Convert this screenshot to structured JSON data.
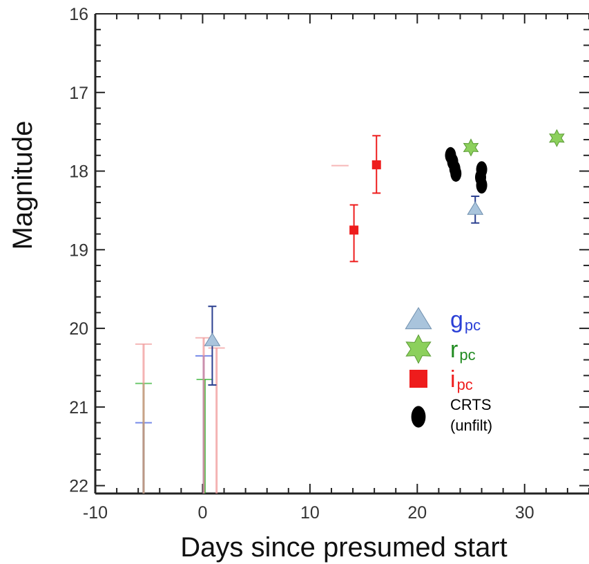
{
  "chart_data": {
    "type": "scatter",
    "xlabel": "Days since presumed start",
    "ylabel": "Magnitude",
    "xlim": [
      -10,
      36
    ],
    "ylim": [
      22.1,
      16
    ],
    "y_inverted": true,
    "x_ticks": [
      -10,
      0,
      10,
      20,
      30
    ],
    "y_ticks": [
      16,
      17,
      18,
      19,
      20,
      21,
      22
    ],
    "grid": false,
    "legend_position": "right",
    "series": [
      {
        "key": "g",
        "legend_main": "g",
        "legend_sub": "pc",
        "marker": "triangle",
        "color": "#a9c4dc",
        "label_color": "#2a3fd6",
        "points": [
          {
            "x": 0.9,
            "y": 20.15
          },
          {
            "x": 25.4,
            "y": 18.48
          }
        ],
        "errorbars": [
          {
            "x": 0.9,
            "y_low": 19.72,
            "y_high": 20.72
          },
          {
            "x": 25.4,
            "y_low": 18.32,
            "y_high": 18.66
          }
        ],
        "upper_limits": [
          {
            "x": -5.5,
            "y": 21.2
          },
          {
            "x": 0.1,
            "y": 20.35
          }
        ]
      },
      {
        "key": "r",
        "legend_main": "r",
        "legend_sub": "pc",
        "marker": "star",
        "color": "#8cd05c",
        "label_color": "#1f8a1f",
        "points": [
          {
            "x": 25.0,
            "y": 17.7
          },
          {
            "x": 33.0,
            "y": 17.58
          }
        ],
        "errorbars": [],
        "upper_limits": [
          {
            "x": -5.5,
            "y": 20.7
          },
          {
            "x": 0.2,
            "y": 20.65
          }
        ]
      },
      {
        "key": "i",
        "legend_main": "i",
        "legend_sub": "pc",
        "marker": "square",
        "color": "#ee1c1c",
        "label_color": "#ee1c1c",
        "points": [
          {
            "x": 14.1,
            "y": 18.75
          },
          {
            "x": 16.2,
            "y": 17.92
          }
        ],
        "errorbars": [
          {
            "x": 14.1,
            "y_low": 18.43,
            "y_high": 19.15
          },
          {
            "x": 16.2,
            "y_low": 17.55,
            "y_high": 18.28
          }
        ],
        "upper_limits": [
          {
            "x": -5.5,
            "y": 20.2
          },
          {
            "x": 0.1,
            "y": 20.12
          },
          {
            "x": 1.3,
            "y": 20.25
          }
        ]
      },
      {
        "key": "crts",
        "legend_main": "CRTS",
        "legend_sub": "(unfilt)",
        "marker": "ellipse",
        "color": "#000000",
        "label_color": "#000000",
        "points": [
          {
            "x": 23.1,
            "y": 17.8
          },
          {
            "x": 23.3,
            "y": 17.88
          },
          {
            "x": 23.5,
            "y": 17.97
          },
          {
            "x": 23.6,
            "y": 18.03
          },
          {
            "x": 26.0,
            "y": 17.98
          },
          {
            "x": 25.9,
            "y": 18.08
          },
          {
            "x": 26.0,
            "y": 18.18
          }
        ],
        "errorbars": [],
        "upper_limits": []
      }
    ]
  }
}
